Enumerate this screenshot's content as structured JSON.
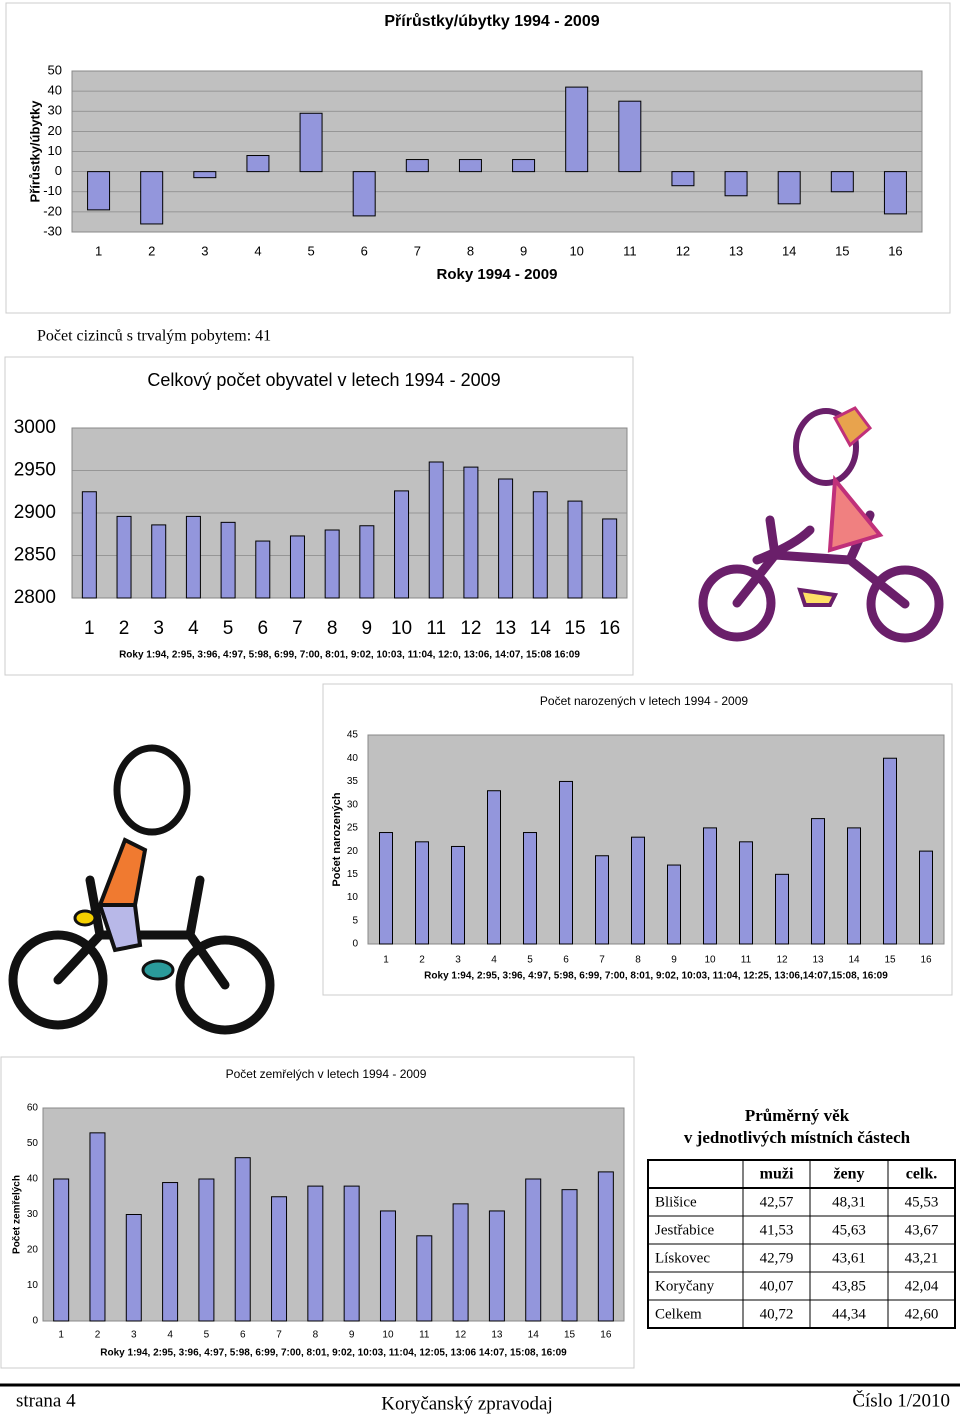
{
  "chart_data": [
    {
      "type": "bar",
      "title": "Přírůstky/úbytky 1994 - 2009",
      "ylabel": "Přírůstky/úbytky",
      "xlabel": "Roky 1994 - 2009",
      "categories": [
        "1",
        "2",
        "3",
        "4",
        "5",
        "6",
        "7",
        "8",
        "9",
        "10",
        "11",
        "12",
        "13",
        "14",
        "15",
        "16"
      ],
      "values": [
        -19,
        -26,
        -3,
        8,
        29,
        -22,
        6,
        6,
        6,
        42,
        35,
        -7,
        -12,
        -16,
        -10,
        -21
      ],
      "color": "#9396dc",
      "ylim": [
        -30,
        50
      ],
      "yticks": [
        -30,
        -20,
        -10,
        0,
        10,
        20,
        30,
        40,
        50
      ],
      "grid": true
    },
    {
      "type": "bar",
      "title": "Celkový počet obyvatel v letech 1994 - 2009",
      "xlabel": "Roky 1:94, 2:95, 3:96, 4:97, 5:98, 6:99, 7:00, 8:01, 9:02, 10:03, 11:04, 12:0, 13:06, 14:07, 15:08 16:09",
      "categories": [
        "1",
        "2",
        "3",
        "4",
        "5",
        "6",
        "7",
        "8",
        "9",
        "10",
        "11",
        "12",
        "13",
        "14",
        "15",
        "16"
      ],
      "values": [
        2925,
        2896,
        2886,
        2896,
        2889,
        2867,
        2873,
        2880,
        2885,
        2926,
        2960,
        2954,
        2940,
        2925,
        2914,
        2893
      ],
      "color": "#9396dc",
      "ylim": [
        2800,
        3000
      ],
      "yticks": [
        2800,
        2850,
        2900,
        2950,
        3000
      ],
      "grid": true
    },
    {
      "type": "bar",
      "title": "Počet narozených v letech 1994 - 2009",
      "ylabel": "Počet narozených",
      "xlabel": "Roky 1:94, 2:95, 3:96, 4:97, 5:98, 6:99, 7:00, 8:01, 9:02, 10:03, 11:04, 12:25, 13:06,14:07,15:08, 16:09",
      "categories": [
        "1",
        "2",
        "3",
        "4",
        "5",
        "6",
        "7",
        "8",
        "9",
        "10",
        "11",
        "12",
        "13",
        "14",
        "15",
        "16"
      ],
      "values": [
        24,
        22,
        21,
        33,
        24,
        35,
        19,
        23,
        17,
        25,
        22,
        15,
        27,
        25,
        40,
        20
      ],
      "color": "#9396dc",
      "ylim": [
        0,
        45
      ],
      "yticks": [
        0,
        5,
        10,
        15,
        20,
        25,
        30,
        35,
        40,
        45
      ],
      "grid": false
    },
    {
      "type": "bar",
      "title": "Počet zemřelých v letech 1994 - 2009",
      "ylabel": "Počet zemřelých",
      "xlabel": "Roky 1:94, 2:95, 3:96, 4:97, 5:98, 6:99, 7:00, 8:01, 9:02, 10:03, 11:04, 12:05, 13:06 14:07, 15:08,  16:09",
      "categories": [
        "1",
        "2",
        "3",
        "4",
        "5",
        "6",
        "7",
        "8",
        "9",
        "10",
        "11",
        "12",
        "13",
        "14",
        "15",
        "16"
      ],
      "values": [
        40,
        53,
        30,
        39,
        40,
        46,
        35,
        38,
        38,
        31,
        24,
        33,
        31,
        40,
        37,
        42
      ],
      "color": "#9396dc",
      "ylim": [
        0,
        60
      ],
      "yticks": [
        0,
        10,
        20,
        30,
        40,
        50,
        60
      ],
      "grid": false
    }
  ],
  "note": "Počet cizinců s trvalým pobytem: 41",
  "table": {
    "title": [
      "Průměrný věk",
      "v jednotlivých místních částech"
    ],
    "header": [
      "muži",
      "ženy",
      "celk."
    ],
    "rows": [
      [
        "Blišice",
        "42,57",
        "48,31",
        "45,53"
      ],
      [
        "Jestřabice",
        "41,53",
        "45,63",
        "43,67"
      ],
      [
        "Lískovec",
        "42,79",
        "43,61",
        "43,21"
      ],
      [
        "Koryčany",
        "40,07",
        "43,85",
        "42,04"
      ],
      [
        "Celkem",
        "40,72",
        "44,34",
        "42,60"
      ]
    ]
  },
  "footer": {
    "page": "strana 4",
    "magazine": "Koryčanský zpravodaj",
    "issue": "Číslo 1/2010"
  }
}
